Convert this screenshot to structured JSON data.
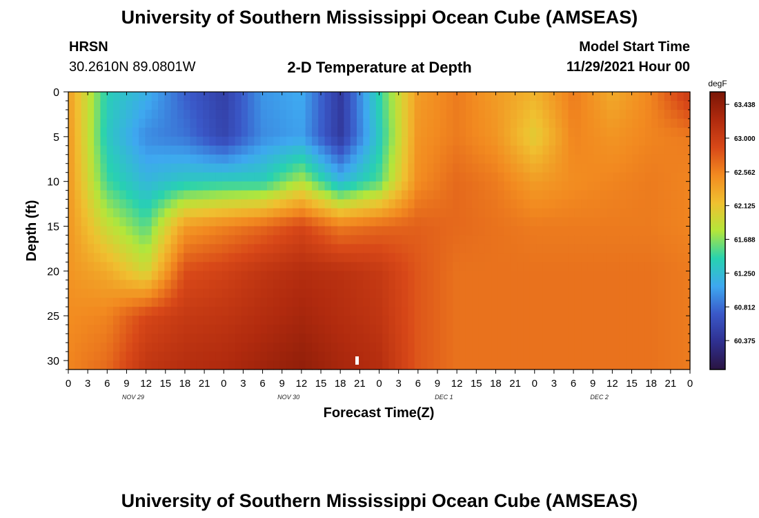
{
  "header": {
    "title": "University of Southern Mississippi Ocean Cube (AMSEAS)",
    "station": "HRSN",
    "coords": "30.2610N  89.0801W",
    "plot_title": "2-D Temperature at Depth",
    "model_label": "Model Start Time",
    "model_time": "11/29/2021 Hour 00"
  },
  "footer": {
    "title": "University of Southern Mississippi Ocean Cube (AMSEAS)"
  },
  "colors": {
    "scale": [
      "#2a1442",
      "#2f3090",
      "#3a58c8",
      "#3ea8f0",
      "#27d2b0",
      "#b4e63a",
      "#f0c030",
      "#f28a20",
      "#d84818",
      "#b02a0e",
      "#7a1606"
    ]
  },
  "chart_data": {
    "type": "heatmap",
    "title": "2-D Temperature at Depth",
    "xlabel": "Forecast Time(Z)",
    "ylabel": "Depth (ft)",
    "x_ticks": [
      "0",
      "3",
      "6",
      "9",
      "12",
      "15",
      "18",
      "21",
      "0",
      "3",
      "6",
      "9",
      "12",
      "15",
      "18",
      "21",
      "0",
      "3",
      "6",
      "9",
      "12",
      "15",
      "18",
      "21",
      "0",
      "3",
      "6",
      "9",
      "12",
      "15",
      "18",
      "21",
      "0"
    ],
    "day_labels": [
      "NOV 29",
      "NOV 30",
      "DEC 1",
      "DEC 2"
    ],
    "x_range_hours": [
      0,
      96
    ],
    "y_ticks": [
      0,
      5,
      10,
      15,
      20,
      25,
      30
    ],
    "y_range_ft": [
      0,
      31
    ],
    "colorbar": {
      "unit": "degF",
      "min": 60.0,
      "max": 63.6,
      "labels": [
        "63.438",
        "63.000",
        "62.562",
        "62.125",
        "61.688",
        "61.250",
        "60.812",
        "60.375"
      ]
    },
    "grid": {
      "x_hours": [
        0,
        6,
        12,
        18,
        24,
        30,
        36,
        42,
        48,
        54,
        60,
        66,
        72,
        78,
        84,
        90,
        96
      ],
      "y_ft": [
        0,
        5,
        10,
        15,
        20,
        25,
        31
      ],
      "values": [
        [
          62.4,
          61.4,
          61.15,
          60.75,
          60.5,
          61.0,
          61.1,
          60.45,
          61.45,
          62.4,
          62.6,
          62.4,
          62.25,
          62.6,
          62.3,
          62.55,
          63.05
        ],
        [
          62.45,
          61.35,
          60.95,
          60.85,
          60.55,
          60.95,
          61.05,
          60.45,
          61.35,
          62.45,
          62.6,
          62.45,
          62.05,
          62.55,
          62.45,
          62.55,
          62.6
        ],
        [
          62.45,
          61.5,
          61.2,
          61.35,
          61.4,
          61.4,
          61.8,
          61.2,
          61.55,
          62.5,
          62.7,
          62.6,
          62.4,
          62.5,
          62.55,
          62.6,
          62.55
        ],
        [
          62.45,
          61.9,
          61.55,
          62.4,
          62.55,
          62.7,
          62.9,
          62.6,
          62.7,
          62.75,
          62.7,
          62.65,
          62.6,
          62.6,
          62.6,
          62.6,
          62.55
        ],
        [
          62.45,
          62.3,
          61.95,
          62.85,
          62.95,
          63.1,
          63.2,
          63.15,
          63.05,
          62.8,
          62.65,
          62.65,
          62.65,
          62.65,
          62.65,
          62.65,
          62.6
        ],
        [
          62.5,
          62.55,
          62.9,
          63.05,
          63.1,
          63.2,
          63.3,
          63.2,
          63.1,
          62.8,
          62.65,
          62.65,
          62.65,
          62.65,
          62.65,
          62.65,
          62.6
        ],
        [
          62.55,
          62.7,
          63.1,
          63.2,
          63.25,
          63.35,
          63.45,
          63.3,
          63.2,
          62.8,
          62.65,
          62.65,
          62.65,
          62.65,
          62.65,
          62.65,
          62.6
        ]
      ]
    }
  }
}
